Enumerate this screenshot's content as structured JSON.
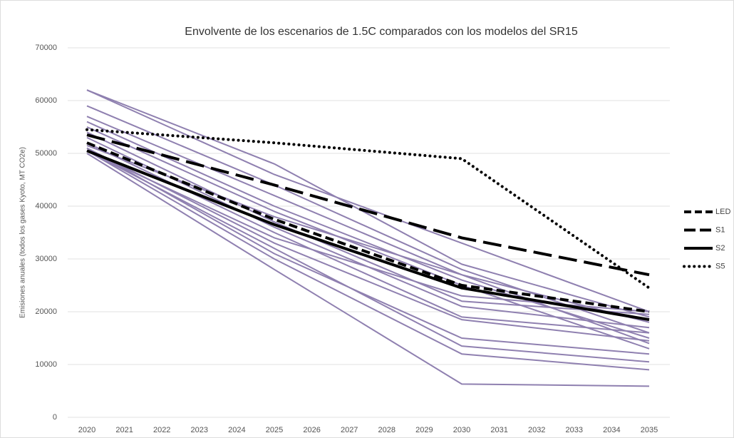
{
  "chart_data": {
    "type": "line",
    "title": "Envolvente de los escenarios de 1.5C comparados con los modelos del SR15",
    "y_label": "Emisiones anuales (todos los gases Kyoto, MT CO2e)",
    "xlim": [
      2020,
      2035
    ],
    "xticks": [
      2020,
      2021,
      2022,
      2023,
      2024,
      2025,
      2026,
      2027,
      2028,
      2029,
      2030,
      2031,
      2032,
      2033,
      2034,
      2035
    ],
    "ylim": [
      0,
      70000
    ],
    "yticks": [
      0,
      10000,
      20000,
      30000,
      40000,
      50000,
      60000,
      70000
    ],
    "grid": true,
    "legend": "right",
    "series": [
      {
        "color": "#8f80b0",
        "style": "solid",
        "x": [
          2020,
          2025,
          2030,
          2035
        ],
        "values": [
          62000,
          46000,
          33000,
          20000
        ]
      },
      {
        "color": "#8f80b0",
        "style": "solid",
        "x": [
          2020,
          2025,
          2030,
          2035
        ],
        "values": [
          62000,
          48000,
          29000,
          19000
        ]
      },
      {
        "color": "#8f80b0",
        "style": "solid",
        "x": [
          2020,
          2025,
          2030,
          2035
        ],
        "values": [
          59000,
          44000,
          28000,
          16000
        ]
      },
      {
        "color": "#8f80b0",
        "style": "solid",
        "x": [
          2020,
          2025,
          2030,
          2035
        ],
        "values": [
          57000,
          42000,
          27000,
          14000
        ]
      },
      {
        "color": "#8f80b0",
        "style": "solid",
        "x": [
          2020,
          2025,
          2030,
          2035
        ],
        "values": [
          56000,
          40000,
          26000,
          15000
        ]
      },
      {
        "color": "#8f80b0",
        "style": "solid",
        "x": [
          2020,
          2025,
          2030,
          2035
        ],
        "values": [
          55000,
          39000,
          25000,
          13000
        ]
      },
      {
        "color": "#8f80b0",
        "style": "solid",
        "x": [
          2020,
          2025,
          2030,
          2035
        ],
        "values": [
          54000,
          37000,
          22000,
          19500
        ]
      },
      {
        "color": "#8f80b0",
        "style": "solid",
        "x": [
          2020,
          2025,
          2030,
          2035
        ],
        "values": [
          53000,
          36000,
          21000,
          17000
        ]
      },
      {
        "color": "#8f80b0",
        "style": "solid",
        "x": [
          2020,
          2025,
          2030,
          2035
        ],
        "values": [
          52000,
          35000,
          19000,
          16000
        ]
      },
      {
        "color": "#8f80b0",
        "style": "solid",
        "x": [
          2020,
          2025,
          2030,
          2035
        ],
        "values": [
          51000,
          33000,
          18500,
          14500
        ]
      },
      {
        "color": "#8f80b0",
        "style": "solid",
        "x": [
          2020,
          2025,
          2030,
          2035
        ],
        "values": [
          51000,
          31000,
          15000,
          12000
        ]
      },
      {
        "color": "#8f80b0",
        "style": "solid",
        "x": [
          2020,
          2025,
          2030,
          2035
        ],
        "values": [
          50500,
          32000,
          13500,
          10500
        ]
      },
      {
        "color": "#8f80b0",
        "style": "solid",
        "x": [
          2020,
          2025,
          2030,
          2035
        ],
        "values": [
          50500,
          30000,
          12000,
          9000
        ]
      },
      {
        "color": "#8f80b0",
        "style": "solid",
        "x": [
          2020,
          2025,
          2030,
          2035
        ],
        "values": [
          50000,
          28000,
          6300,
          5900
        ]
      },
      {
        "color": "#8f80b0",
        "style": "solid",
        "x": [
          2020,
          2025,
          2030,
          2035
        ],
        "values": [
          50500,
          34000,
          23000,
          20000
        ]
      },
      {
        "color": "#8f80b0",
        "style": "solid",
        "x": [
          2020,
          2025,
          2030,
          2035
        ],
        "values": [
          51500,
          38000,
          27000,
          18000
        ]
      },
      {
        "name": "LED",
        "color": "#000000",
        "style": "short-dash",
        "x": [
          2020,
          2025,
          2030,
          2035
        ],
        "values": [
          52000,
          37500,
          25000,
          20000
        ]
      },
      {
        "name": "S1",
        "color": "#000000",
        "style": "long-dash",
        "x": [
          2020,
          2025,
          2030,
          2035
        ],
        "values": [
          53500,
          44000,
          34000,
          27000
        ]
      },
      {
        "name": "S2",
        "color": "#000000",
        "style": "solid",
        "x": [
          2020,
          2025,
          2030,
          2035
        ],
        "values": [
          50500,
          36500,
          24500,
          18500
        ]
      },
      {
        "name": "S5",
        "color": "#000000",
        "style": "dotted",
        "x": [
          2020,
          2025,
          2030,
          2035
        ],
        "values": [
          54500,
          52000,
          49000,
          24500
        ]
      }
    ]
  }
}
